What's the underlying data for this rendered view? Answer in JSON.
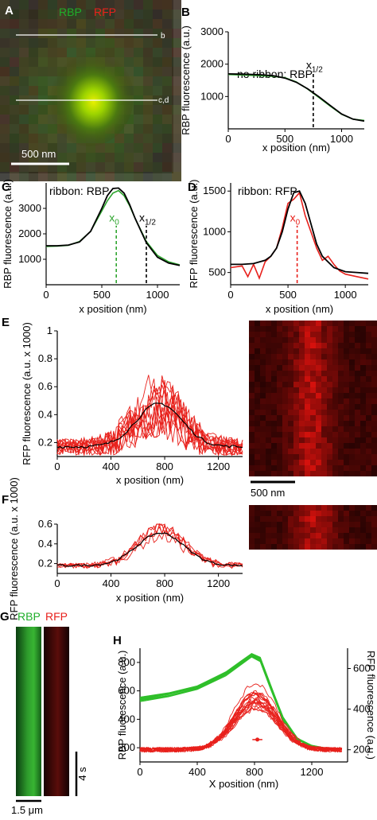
{
  "panels": {
    "A": {
      "label": "A",
      "legend": [
        {
          "text": "RBP",
          "color": "#1fae2a"
        },
        {
          "text": "RFP",
          "color": "#e8211c"
        }
      ],
      "line_labels": [
        "b",
        "c,d"
      ],
      "scalebar": "500 nm"
    },
    "E_image": {
      "scalebar": "500 nm"
    },
    "G": {
      "label": "G",
      "labels": [
        {
          "text": "RBP",
          "color": "#1fae2a"
        },
        {
          "text": "RFP",
          "color": "#e8211c"
        }
      ],
      "time_bar": "4 s",
      "scalebar": "1.5 μm"
    }
  },
  "colors": {
    "green": "#2fa52f",
    "red": "#e8211c",
    "black": "#000000"
  },
  "chart_data": [
    {
      "id": "B",
      "label": "B",
      "type": "line",
      "annotation": "no ribbon: RBP",
      "xlabel": "x position (nm)",
      "ylabel": "RBP fluorescence (a.u.)",
      "xlim": [
        0,
        1200
      ],
      "ylim": [
        0,
        3000
      ],
      "xticks": [
        0,
        500,
        1000
      ],
      "yticks": [
        1000,
        2000,
        3000
      ],
      "series": [
        {
          "color": "green",
          "x": [
            0,
            150,
            300,
            400,
            500,
            600,
            700,
            800,
            900,
            1000,
            1100,
            1200
          ],
          "y": [
            1680,
            1660,
            1640,
            1620,
            1580,
            1450,
            1230,
            970,
            700,
            450,
            300,
            260
          ]
        },
        {
          "color": "black",
          "x": [
            0,
            150,
            300,
            400,
            500,
            600,
            700,
            800,
            900,
            1000,
            1100,
            1200
          ],
          "y": [
            1700,
            1690,
            1670,
            1640,
            1570,
            1440,
            1240,
            990,
            720,
            460,
            300,
            240
          ]
        }
      ],
      "markers": [
        {
          "x": 750,
          "label": "x1/2",
          "color": "black"
        }
      ]
    },
    {
      "id": "C",
      "label": "C",
      "type": "line",
      "annotation": "ribbon: RBP",
      "xlabel": "x position (nm)",
      "ylabel": "RBP fluorescence (a.u.)",
      "xlim": [
        0,
        1200
      ],
      "ylim": [
        0,
        4000
      ],
      "xticks": [
        0,
        500,
        1000
      ],
      "yticks": [
        1000,
        2000,
        3000
      ],
      "series": [
        {
          "color": "green",
          "x": [
            0,
            100,
            200,
            300,
            400,
            500,
            550,
            600,
            650,
            700,
            750,
            800,
            900,
            1000,
            1100,
            1200
          ],
          "y": [
            1500,
            1520,
            1550,
            1700,
            2100,
            2900,
            3300,
            3600,
            3700,
            3500,
            3100,
            2600,
            1700,
            1150,
            900,
            780
          ]
        },
        {
          "color": "black",
          "x": [
            0,
            100,
            200,
            300,
            400,
            500,
            550,
            600,
            650,
            700,
            750,
            800,
            900,
            1000,
            1100,
            1200
          ],
          "y": [
            1530,
            1530,
            1560,
            1680,
            2100,
            3000,
            3500,
            3780,
            3800,
            3600,
            3150,
            2600,
            1650,
            1080,
            850,
            760
          ]
        }
      ],
      "markers": [
        {
          "x": 630,
          "label": "x0",
          "color": "green"
        },
        {
          "x": 900,
          "label": "x1/2",
          "color": "black"
        }
      ]
    },
    {
      "id": "D",
      "label": "D",
      "type": "line",
      "annotation": "ribbon: RFP",
      "xlabel": "x position (nm)",
      "ylabel": "RFP fluorescence (a.u.)",
      "xlim": [
        0,
        1200
      ],
      "ylim": [
        350,
        1600
      ],
      "xticks": [
        0,
        500,
        1000
      ],
      "yticks": [
        500,
        1000,
        1500
      ],
      "series": [
        {
          "color": "red",
          "x": [
            0,
            100,
            150,
            200,
            250,
            300,
            350,
            400,
            450,
            500,
            550,
            600,
            650,
            700,
            750,
            800,
            850,
            900,
            950,
            1000,
            1100,
            1200
          ],
          "y": [
            560,
            580,
            450,
            600,
            430,
            630,
            700,
            800,
            1050,
            1350,
            1400,
            1480,
            1200,
            1000,
            800,
            650,
            700,
            600,
            520,
            480,
            450,
            420
          ]
        },
        {
          "color": "black",
          "x": [
            0,
            100,
            200,
            300,
            350,
            400,
            450,
            500,
            550,
            600,
            650,
            700,
            750,
            800,
            900,
            1000,
            1100,
            1200
          ],
          "y": [
            600,
            600,
            610,
            650,
            700,
            800,
            1000,
            1280,
            1480,
            1500,
            1350,
            1100,
            850,
            700,
            560,
            510,
            500,
            490
          ]
        }
      ],
      "markers": [
        {
          "x": 580,
          "label": "x0",
          "color": "red"
        }
      ]
    },
    {
      "id": "E",
      "label": "E",
      "type": "line",
      "xlabel": "x position (nm)",
      "ylabel": "RFP fluorescence (a.u. x 1000)",
      "xlim": [
        0,
        1380
      ],
      "ylim": [
        0.1,
        1.0
      ],
      "xticks": [
        0,
        400,
        800,
        1200
      ],
      "yticks": [
        0.2,
        0.4,
        0.6,
        0.8,
        1.0
      ],
      "curve": {
        "base": 0.17,
        "center": 760,
        "width": 170,
        "peak_mean": 0.31,
        "n": 12,
        "noise": 0.09,
        "traces_color": "red",
        "mean_color": "black"
      }
    },
    {
      "id": "F",
      "label": "F",
      "type": "line",
      "xlabel": "x position (nm)",
      "ylabel": "RFP fluorescence (a.u. x 1000)",
      "xlim": [
        0,
        1380
      ],
      "ylim": [
        0.1,
        0.6
      ],
      "xticks": [
        0,
        400,
        800,
        1200
      ],
      "yticks": [
        0.2,
        0.4,
        0.6
      ],
      "curve": {
        "base": 0.18,
        "center": 770,
        "width": 175,
        "peak_mean": 0.33,
        "n": 5,
        "noise": 0.04,
        "traces_color": "red",
        "mean_color": "black"
      }
    },
    {
      "id": "H",
      "label": "H",
      "type": "line",
      "xlabel": "X position (nm)",
      "ylabel": "RBP fluorescence (a.u.)",
      "ylabel_right": "RFP fluorescence (a.u.)",
      "xlim": [
        0,
        1450
      ],
      "ylim": [
        100,
        900
      ],
      "ylim_right": [
        140,
        700
      ],
      "xticks": [
        0,
        400,
        800,
        1200
      ],
      "yticks": [
        200,
        400,
        600,
        800
      ],
      "yticks_right": [
        200,
        400,
        600
      ],
      "green": {
        "x": [
          0,
          200,
          400,
          600,
          700,
          780,
          840,
          900,
          1000,
          1100,
          1200,
          1300,
          1400
        ],
        "y": [
          540,
          570,
          620,
          720,
          790,
          850,
          820,
          660,
          400,
          260,
          210,
          190,
          180
        ],
        "n": 14
      },
      "red_right": {
        "base": 200,
        "center": 810,
        "width": 150,
        "peak": 265,
        "n": 20,
        "noise": 12
      },
      "errorbar": {
        "x": 820,
        "xerr": 35,
        "y": 250
      }
    }
  ]
}
